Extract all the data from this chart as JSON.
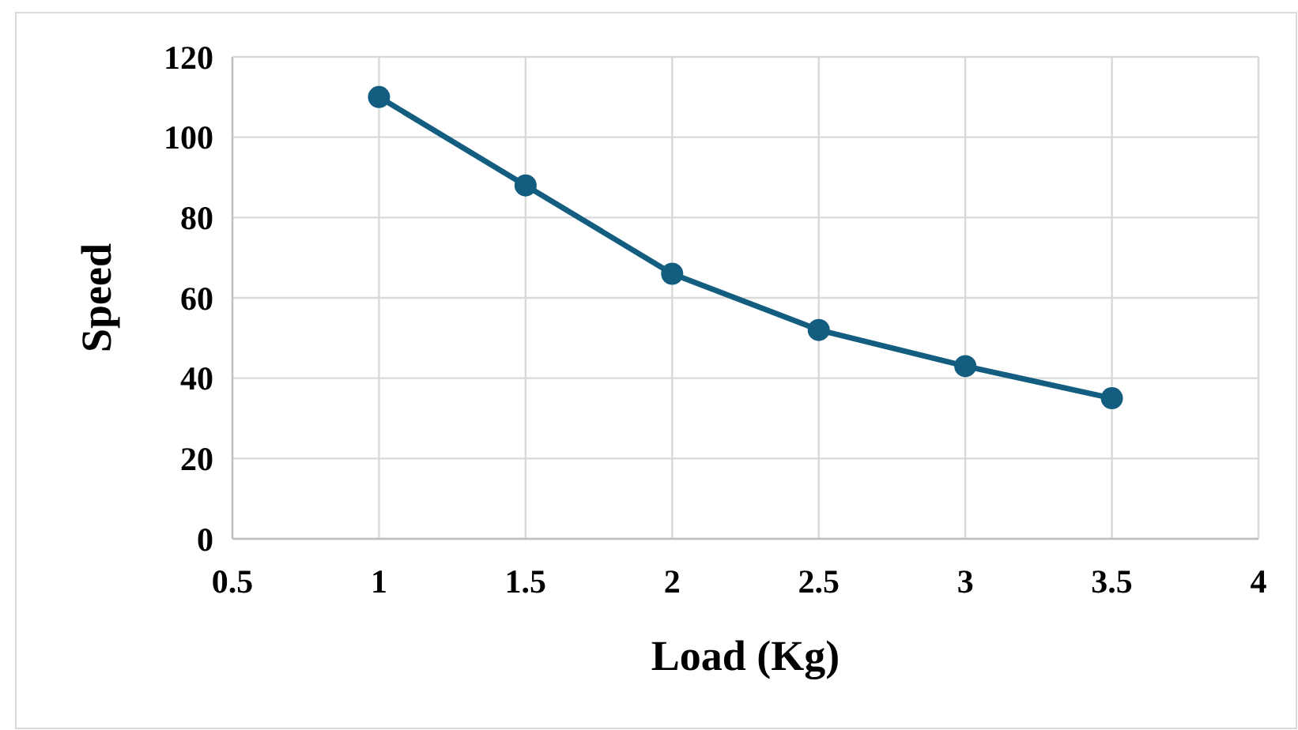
{
  "chart_data": {
    "type": "line",
    "xlabel": "Load (Kg)",
    "ylabel": "Speed",
    "x": [
      1,
      1.5,
      2,
      2.5,
      3,
      3.5
    ],
    "series": [
      {
        "color": "#135e80",
        "values": [
          110,
          88,
          66,
          52,
          43,
          35
        ]
      }
    ],
    "xlim": [
      0.5,
      4
    ],
    "xticks": [
      0.5,
      1,
      1.5,
      2,
      2.5,
      3,
      3.5,
      4
    ],
    "ylim": [
      0,
      120
    ],
    "yticks": [
      0,
      20,
      40,
      60,
      80,
      100,
      120
    ],
    "grid": true,
    "marker": "circle",
    "line_style": "solid"
  }
}
